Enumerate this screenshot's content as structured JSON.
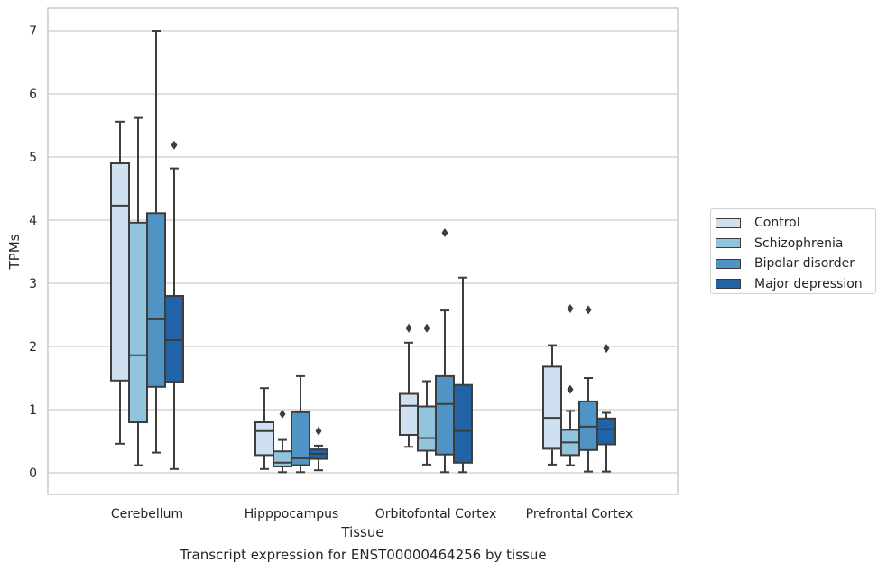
{
  "caption": "Transcript expression for ENST00000464256 by tissue",
  "chart_data": {
    "type": "box",
    "xlabel": "Tissue",
    "ylabel": "TPMs",
    "ylim": [
      -0.33,
      7.35
    ],
    "yticks": [
      0,
      1,
      2,
      3,
      4,
      5,
      6,
      7
    ],
    "grid": "horizontal",
    "legend_position": "right",
    "categories": [
      "Cerebellum",
      "Hipppocampus",
      "Orbitofontal Cortex",
      "Prefrontal Cortex"
    ],
    "series": [
      {
        "name": "Control",
        "color": "#cfe0f1",
        "boxes": [
          {
            "whislo": 0.46,
            "q1": 1.46,
            "med": 4.23,
            "q3": 4.9,
            "whishi": 5.56,
            "fliers": []
          },
          {
            "whislo": 0.06,
            "q1": 0.28,
            "med": 0.66,
            "q3": 0.8,
            "whishi": 1.34,
            "fliers": []
          },
          {
            "whislo": 0.41,
            "q1": 0.6,
            "med": 1.06,
            "q3": 1.25,
            "whishi": 2.06,
            "fliers": [
              2.29
            ]
          },
          {
            "whislo": 0.13,
            "q1": 0.38,
            "med": 0.87,
            "q3": 1.68,
            "whishi": 2.02,
            "fliers": []
          }
        ]
      },
      {
        "name": "Schizophrenia",
        "color": "#93c4de",
        "boxes": [
          {
            "whislo": 0.12,
            "q1": 0.8,
            "med": 1.86,
            "q3": 3.96,
            "whishi": 5.62,
            "fliers": []
          },
          {
            "whislo": 0.01,
            "q1": 0.1,
            "med": 0.16,
            "q3": 0.34,
            "whishi": 0.52,
            "fliers": [
              0.93
            ]
          },
          {
            "whislo": 0.13,
            "q1": 0.35,
            "med": 0.55,
            "q3": 1.05,
            "whishi": 1.45,
            "fliers": [
              2.29
            ]
          },
          {
            "whislo": 0.12,
            "q1": 0.28,
            "med": 0.48,
            "q3": 0.68,
            "whishi": 0.98,
            "fliers": [
              1.32,
              2.6
            ]
          }
        ]
      },
      {
        "name": "Bipolar disorder",
        "color": "#4f94c4",
        "boxes": [
          {
            "whislo": 0.32,
            "q1": 1.36,
            "med": 2.43,
            "q3": 4.11,
            "whishi": 7.0,
            "fliers": []
          },
          {
            "whislo": 0.01,
            "q1": 0.12,
            "med": 0.23,
            "q3": 0.96,
            "whishi": 1.53,
            "fliers": []
          },
          {
            "whislo": 0.01,
            "q1": 0.29,
            "med": 1.09,
            "q3": 1.53,
            "whishi": 2.57,
            "fliers": [
              3.8
            ]
          },
          {
            "whislo": 0.02,
            "q1": 0.36,
            "med": 0.73,
            "q3": 1.13,
            "whishi": 1.5,
            "fliers": [
              2.58
            ]
          }
        ]
      },
      {
        "name": "Major depression",
        "color": "#2262a7",
        "boxes": [
          {
            "whislo": 0.06,
            "q1": 1.44,
            "med": 2.1,
            "q3": 2.8,
            "whishi": 4.82,
            "fliers": [
              5.19
            ]
          },
          {
            "whislo": 0.04,
            "q1": 0.22,
            "med": 0.3,
            "q3": 0.37,
            "whishi": 0.43,
            "fliers": [
              0.66
            ]
          },
          {
            "whislo": 0.01,
            "q1": 0.16,
            "med": 0.66,
            "q3": 1.39,
            "whishi": 3.09,
            "fliers": []
          },
          {
            "whislo": 0.02,
            "q1": 0.45,
            "med": 0.69,
            "q3": 0.86,
            "whishi": 0.95,
            "fliers": [
              1.97
            ]
          }
        ]
      }
    ]
  }
}
